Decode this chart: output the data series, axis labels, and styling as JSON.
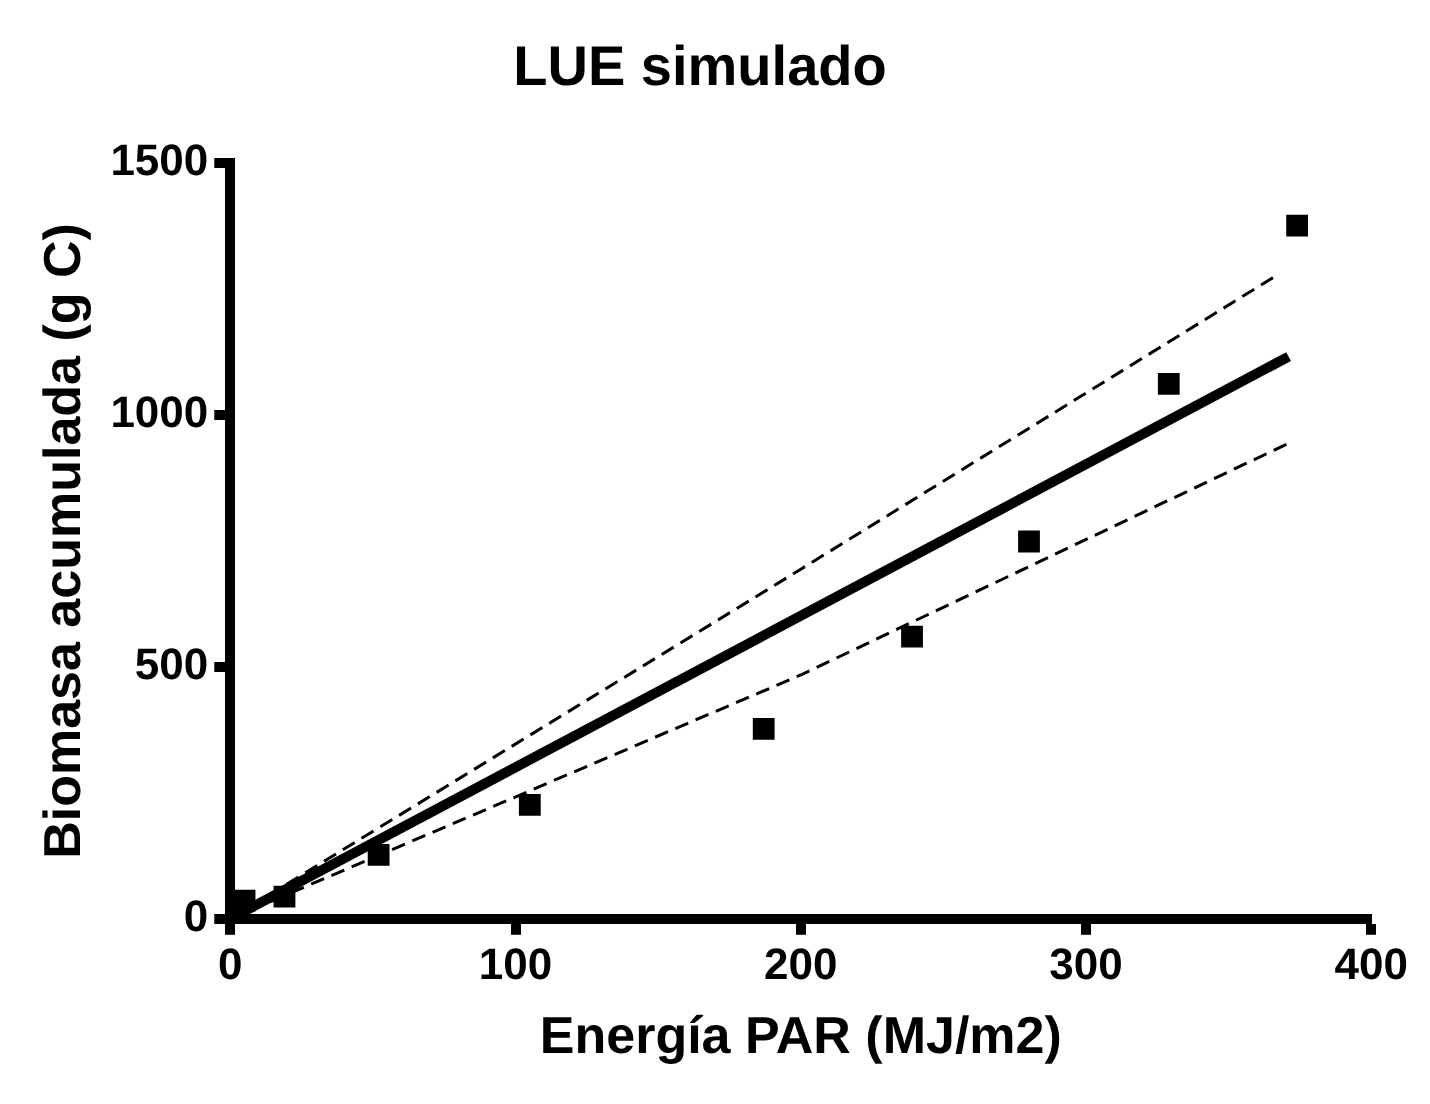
{
  "chart_data": {
    "type": "scatter",
    "title": "LUE simulado",
    "xlabel": "Energía PAR (MJ/m2)",
    "ylabel": "Biomasa acumulada (g C)",
    "xlim": [
      0,
      400
    ],
    "xticks": [
      0,
      100,
      200,
      300,
      400
    ],
    "ylim": [
      0,
      1500
    ],
    "yticks": [
      0,
      500,
      1000,
      1500
    ],
    "grid": false,
    "legend": false,
    "marker": "square",
    "series": [
      {
        "type": "scatter",
        "color": "#000000",
        "x": [
          5,
          19,
          52,
          105,
          187,
          239,
          280,
          329,
          374
        ],
        "values": [
          36,
          44,
          127,
          226,
          377,
          560,
          749,
          1062,
          1376
        ]
      },
      {
        "type": "line",
        "color": "#000000",
        "marker": "none",
        "line_style": "solid",
        "x": [
          0,
          371
        ],
        "values": [
          0,
          1116
        ]
      },
      {
        "type": "line",
        "color": "#000000",
        "marker": "none",
        "line_style": "dashed",
        "x": [
          0,
          200,
          367
        ],
        "values": [
          0,
          694,
          1278
        ]
      },
      {
        "type": "line",
        "color": "#000000",
        "marker": "none",
        "line_style": "dashed",
        "x": [
          0,
          200,
          371
        ],
        "values": [
          0,
          484,
          944
        ]
      }
    ]
  }
}
